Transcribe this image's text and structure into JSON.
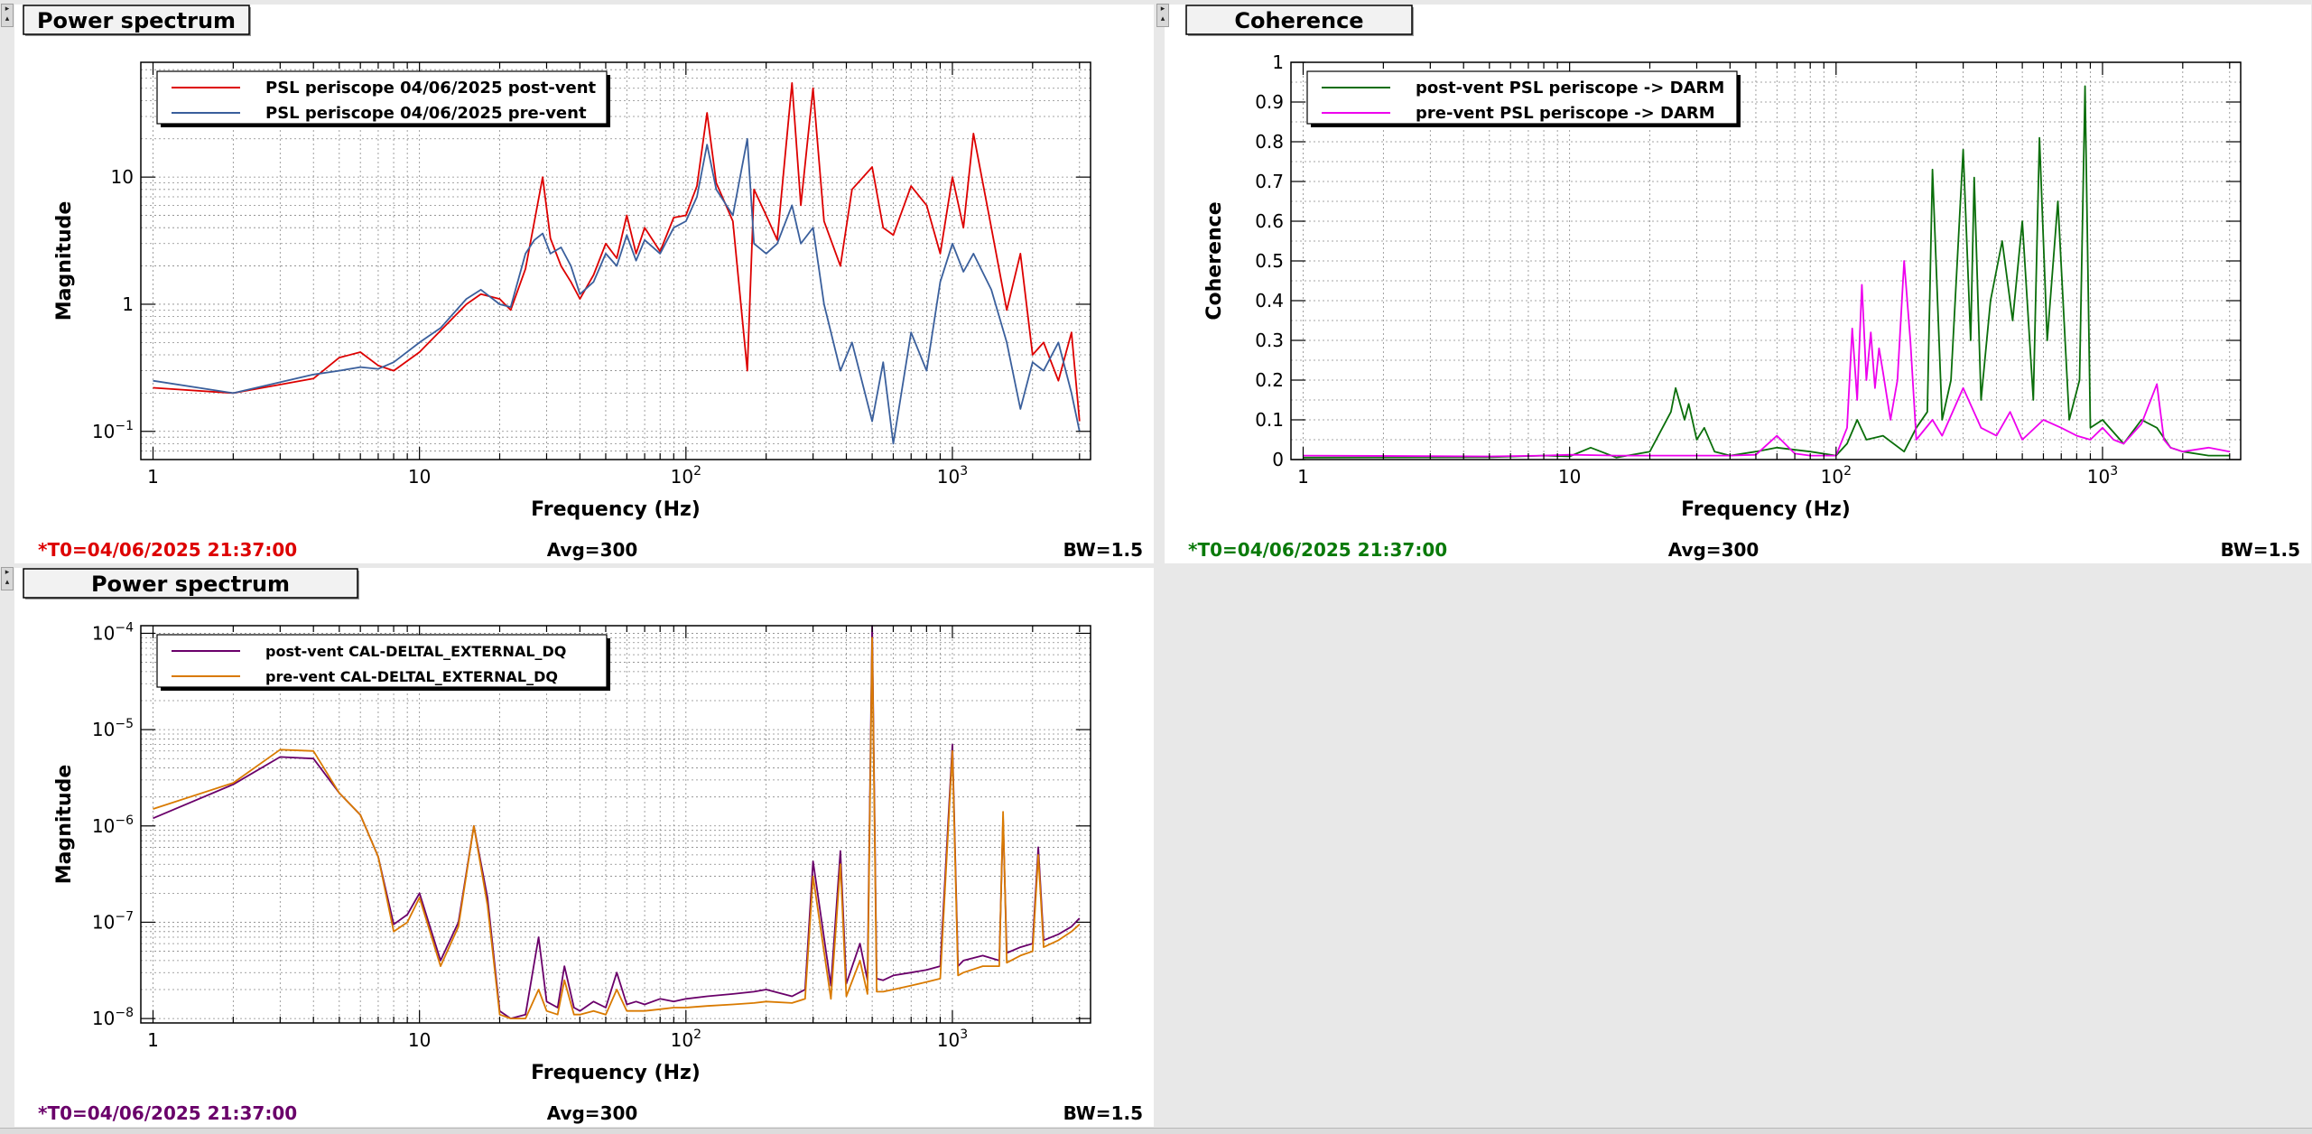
{
  "panels": [
    {
      "id": "tl",
      "title": "Power spectrum",
      "ylabel": "Magnitude",
      "xlabel": "Frequency (Hz)",
      "yscale": "log",
      "xlim": [
        0.9,
        3300
      ],
      "ylim": [
        0.06,
        80
      ],
      "xticks": [
        {
          "v": 1,
          "t": "1"
        },
        {
          "v": 10,
          "t": "10"
        },
        {
          "v": 100,
          "t": "10",
          "sup": "2"
        },
        {
          "v": 1000,
          "t": "10",
          "sup": "3"
        }
      ],
      "yticks": [
        {
          "v": 0.1,
          "t": "10",
          "sup": "−1"
        },
        {
          "v": 1,
          "t": "1"
        },
        {
          "v": 10,
          "t": "10"
        }
      ],
      "legend": [
        {
          "label": "PSL periscope 04/06/2025 post-vent",
          "color": "#dd0000"
        },
        {
          "label": "PSL periscope 04/06/2025 pre-vent",
          "color": "#3a5f9c"
        }
      ],
      "footer": {
        "t0": "*T0=04/06/2025 21:37:00",
        "t0_color": "#dd0000",
        "avg": "Avg=300",
        "bw": "BW=1.5"
      }
    },
    {
      "id": "tr",
      "title": "Coherence",
      "ylabel": "Coherence",
      "xlabel": "Frequency (Hz)",
      "yscale": "linear",
      "xlim": [
        0.9,
        3300
      ],
      "ylim": [
        0,
        1
      ],
      "xticks": [
        {
          "v": 1,
          "t": "1"
        },
        {
          "v": 10,
          "t": "10"
        },
        {
          "v": 100,
          "t": "10",
          "sup": "2"
        },
        {
          "v": 1000,
          "t": "10",
          "sup": "3"
        }
      ],
      "yticks": [
        {
          "v": 0,
          "t": "0"
        },
        {
          "v": 0.1,
          "t": "0.1"
        },
        {
          "v": 0.2,
          "t": "0.2"
        },
        {
          "v": 0.3,
          "t": "0.3"
        },
        {
          "v": 0.4,
          "t": "0.4"
        },
        {
          "v": 0.5,
          "t": "0.5"
        },
        {
          "v": 0.6,
          "t": "0.6"
        },
        {
          "v": 0.7,
          "t": "0.7"
        },
        {
          "v": 0.8,
          "t": "0.8"
        },
        {
          "v": 0.9,
          "t": "0.9"
        },
        {
          "v": 1,
          "t": "1"
        }
      ],
      "legend": [
        {
          "label": "post-vent PSL periscope -> DARM",
          "color": "#0a6e0a"
        },
        {
          "label": "pre-vent PSL periscope -> DARM",
          "color": "#ee00ee"
        }
      ],
      "footer": {
        "t0": "*T0=04/06/2025 21:37:00",
        "t0_color": "#0a7a0a",
        "avg": "Avg=300",
        "bw": "BW=1.5"
      }
    },
    {
      "id": "bl",
      "title": "Power spectrum",
      "ylabel": "Magnitude",
      "xlabel": "Frequency (Hz)",
      "yscale": "log",
      "xlim": [
        0.9,
        3300
      ],
      "ylim": [
        9e-09,
        0.00012
      ],
      "xticks": [
        {
          "v": 1,
          "t": "1"
        },
        {
          "v": 10,
          "t": "10"
        },
        {
          "v": 100,
          "t": "10",
          "sup": "2"
        },
        {
          "v": 1000,
          "t": "10",
          "sup": "3"
        }
      ],
      "yticks": [
        {
          "v": 1e-08,
          "t": "10",
          "sup": "−8"
        },
        {
          "v": 1e-07,
          "t": "10",
          "sup": "−7"
        },
        {
          "v": 1e-06,
          "t": "10",
          "sup": "−6"
        },
        {
          "v": 1e-05,
          "t": "10",
          "sup": "−5"
        },
        {
          "v": 0.0001,
          "t": "10",
          "sup": "−4"
        }
      ],
      "legend": [
        {
          "label": "post-vent CAL-DELTAL_EXTERNAL_DQ",
          "color": "#6a006a"
        },
        {
          "label": "pre-vent CAL-DELTAL_EXTERNAL_DQ",
          "color": "#d97a00"
        }
      ],
      "footer": {
        "t0": "*T0=04/06/2025 21:37:00",
        "t0_color": "#6a006a",
        "avg": "Avg=300",
        "bw": "BW=1.5"
      }
    }
  ],
  "chart_data": [
    {
      "type": "line",
      "title": "Power spectrum",
      "xlabel": "Frequency (Hz)",
      "ylabel": "Magnitude",
      "xscale": "log",
      "yscale": "log",
      "xlim": [
        0.9,
        3300
      ],
      "ylim": [
        0.06,
        80
      ],
      "grid": true,
      "legend": "top-left",
      "series": [
        {
          "name": "PSL periscope 04/06/2025 post-vent",
          "color": "#dd0000",
          "x": [
            1,
            2,
            4,
            5,
            6,
            7,
            8,
            10,
            12,
            15,
            17,
            20,
            22,
            25,
            27,
            29,
            31,
            34,
            37,
            40,
            45,
            50,
            55,
            60,
            65,
            70,
            80,
            90,
            100,
            110,
            120,
            130,
            150,
            170,
            180,
            200,
            220,
            250,
            270,
            300,
            330,
            380,
            420,
            500,
            550,
            600,
            700,
            800,
            900,
            1000,
            1100,
            1200,
            1400,
            1600,
            1800,
            2000,
            2200,
            2500,
            2800,
            3000
          ],
          "y": [
            0.22,
            0.2,
            0.26,
            0.38,
            0.42,
            0.33,
            0.3,
            0.42,
            0.62,
            1.0,
            1.2,
            1.1,
            0.9,
            1.9,
            4.5,
            10.0,
            3.3,
            2.0,
            1.5,
            1.1,
            1.7,
            3.0,
            2.3,
            5.0,
            2.5,
            4.0,
            2.6,
            4.8,
            5.0,
            8.5,
            32.0,
            9.0,
            4.5,
            0.3,
            8.0,
            5.0,
            3.2,
            55.0,
            6.0,
            50.0,
            4.5,
            2.0,
            8.0,
            12.0,
            4.0,
            3.5,
            8.5,
            6.0,
            2.5,
            10.0,
            4.0,
            22.0,
            4.0,
            0.9,
            2.5,
            0.4,
            0.5,
            0.25,
            0.6,
            0.12
          ]
        },
        {
          "name": "PSL periscope 04/06/2025 pre-vent",
          "color": "#3a5f9c",
          "x": [
            1,
            2,
            4,
            5,
            6,
            7,
            8,
            10,
            12,
            15,
            17,
            20,
            22,
            25,
            27,
            29,
            31,
            34,
            37,
            40,
            45,
            50,
            55,
            60,
            65,
            70,
            80,
            90,
            100,
            110,
            120,
            130,
            150,
            170,
            180,
            200,
            220,
            250,
            270,
            300,
            330,
            380,
            420,
            500,
            550,
            600,
            700,
            800,
            900,
            1000,
            1100,
            1200,
            1400,
            1600,
            1800,
            2000,
            2200,
            2500,
            2800,
            3000
          ],
          "y": [
            0.25,
            0.2,
            0.28,
            0.3,
            0.32,
            0.31,
            0.35,
            0.5,
            0.65,
            1.1,
            1.3,
            1.0,
            0.95,
            2.5,
            3.2,
            3.6,
            2.5,
            2.8,
            2.0,
            1.2,
            1.5,
            2.5,
            2.0,
            3.5,
            2.2,
            3.2,
            2.5,
            4.0,
            4.5,
            7.0,
            18.0,
            8.0,
            5.0,
            20.0,
            3.0,
            2.5,
            3.0,
            6.0,
            3.0,
            4.0,
            1.0,
            0.3,
            0.5,
            0.12,
            0.35,
            0.08,
            0.6,
            0.3,
            1.5,
            3.0,
            1.8,
            2.5,
            1.3,
            0.5,
            0.15,
            0.35,
            0.3,
            0.5,
            0.2,
            0.1
          ]
        }
      ]
    },
    {
      "type": "line",
      "title": "Coherence",
      "xlabel": "Frequency (Hz)",
      "ylabel": "Coherence",
      "xscale": "log",
      "yscale": "linear",
      "xlim": [
        0.9,
        3300
      ],
      "ylim": [
        0,
        1
      ],
      "grid": true,
      "legend": "top-left",
      "series": [
        {
          "name": "post-vent PSL periscope -> DARM",
          "color": "#0a6e0a",
          "x": [
            1,
            5,
            8,
            10,
            12,
            15,
            20,
            24,
            25,
            27,
            28,
            30,
            32,
            35,
            40,
            50,
            60,
            80,
            100,
            110,
            120,
            130,
            150,
            180,
            200,
            220,
            230,
            250,
            270,
            300,
            320,
            330,
            350,
            380,
            420,
            460,
            500,
            550,
            580,
            620,
            680,
            750,
            820,
            860,
            900,
            1000,
            1200,
            1400,
            1600,
            1800,
            2000,
            2500,
            3000
          ],
          "y": [
            0.005,
            0.006,
            0.01,
            0.008,
            0.03,
            0.005,
            0.02,
            0.12,
            0.18,
            0.1,
            0.14,
            0.05,
            0.08,
            0.02,
            0.01,
            0.02,
            0.03,
            0.02,
            0.01,
            0.04,
            0.1,
            0.05,
            0.06,
            0.02,
            0.08,
            0.12,
            0.73,
            0.1,
            0.2,
            0.78,
            0.3,
            0.71,
            0.15,
            0.4,
            0.55,
            0.35,
            0.6,
            0.15,
            0.81,
            0.3,
            0.65,
            0.1,
            0.2,
            0.94,
            0.08,
            0.1,
            0.04,
            0.1,
            0.08,
            0.03,
            0.02,
            0.01,
            0.01
          ]
        },
        {
          "name": "pre-vent PSL periscope -> DARM",
          "color": "#ee00ee",
          "x": [
            1,
            5,
            8,
            10,
            15,
            20,
            30,
            40,
            50,
            60,
            70,
            80,
            100,
            110,
            115,
            120,
            125,
            130,
            135,
            140,
            145,
            150,
            160,
            170,
            180,
            190,
            200,
            230,
            250,
            300,
            350,
            400,
            450,
            500,
            600,
            700,
            800,
            900,
            1000,
            1100,
            1200,
            1400,
            1600,
            1700,
            1800,
            2000,
            2500,
            3000
          ],
          "y": [
            0.01,
            0.008,
            0.01,
            0.012,
            0.01,
            0.01,
            0.01,
            0.01,
            0.012,
            0.06,
            0.015,
            0.01,
            0.01,
            0.08,
            0.33,
            0.15,
            0.44,
            0.2,
            0.32,
            0.18,
            0.28,
            0.22,
            0.1,
            0.2,
            0.5,
            0.3,
            0.05,
            0.1,
            0.06,
            0.18,
            0.08,
            0.06,
            0.12,
            0.05,
            0.1,
            0.08,
            0.06,
            0.05,
            0.08,
            0.05,
            0.04,
            0.09,
            0.19,
            0.05,
            0.03,
            0.02,
            0.03,
            0.02
          ]
        }
      ]
    },
    {
      "type": "line",
      "title": "Power spectrum",
      "xlabel": "Frequency (Hz)",
      "ylabel": "Magnitude",
      "xscale": "log",
      "yscale": "log",
      "xlim": [
        0.9,
        3300
      ],
      "ylim": [
        9e-09,
        0.00012
      ],
      "grid": true,
      "legend": "top-left",
      "series": [
        {
          "name": "post-vent CAL-DELTAL_EXTERNAL_DQ",
          "color": "#6a006a",
          "x": [
            1,
            2,
            3,
            4,
            5,
            6,
            7,
            8,
            9,
            10,
            12,
            14,
            16,
            18,
            20,
            22,
            25,
            28,
            30,
            33,
            35,
            38,
            40,
            45,
            50,
            55,
            60,
            65,
            70,
            80,
            90,
            100,
            120,
            150,
            180,
            200,
            250,
            280,
            300,
            350,
            380,
            400,
            450,
            480,
            500,
            520,
            550,
            600,
            700,
            800,
            900,
            1000,
            1050,
            1100,
            1300,
            1500,
            1550,
            1600,
            1800,
            2000,
            2100,
            2200,
            2500,
            2800,
            3000
          ],
          "y": [
            1.2e-06,
            2.7e-06,
            5.2e-06,
            5e-06,
            2.2e-06,
            1.3e-06,
            4.8e-07,
            9.5e-08,
            1.2e-07,
            2e-07,
            4e-08,
            1e-07,
            1e-06,
            1.8e-07,
            1.2e-08,
            1e-08,
            1.1e-08,
            7e-08,
            1.5e-08,
            1.3e-08,
            3.5e-08,
            1.3e-08,
            1.2e-08,
            1.5e-08,
            1.3e-08,
            3e-08,
            1.4e-08,
            1.5e-08,
            1.4e-08,
            1.6e-08,
            1.5e-08,
            1.6e-08,
            1.7e-08,
            1.8e-08,
            1.9e-08,
            2e-08,
            1.7e-08,
            2e-08,
            4.3e-07,
            2.2e-08,
            5.5e-07,
            2.3e-08,
            6e-08,
            2.5e-08,
            0.00012,
            2.6e-08,
            2.5e-08,
            2.8e-08,
            3e-08,
            3.2e-08,
            3.5e-08,
            7e-06,
            3.5e-08,
            4e-08,
            4.5e-08,
            4e-08,
            1.2e-06,
            4.8e-08,
            5.5e-08,
            6e-08,
            6e-07,
            6.5e-08,
            7.5e-08,
            9e-08,
            1.1e-07
          ]
        },
        {
          "name": "pre-vent CAL-DELTAL_EXTERNAL_DQ",
          "color": "#d97a00",
          "x": [
            1,
            2,
            3,
            4,
            5,
            6,
            7,
            8,
            9,
            10,
            12,
            14,
            16,
            18,
            20,
            22,
            25,
            28,
            30,
            33,
            35,
            38,
            40,
            45,
            50,
            55,
            60,
            65,
            70,
            80,
            90,
            100,
            120,
            150,
            180,
            200,
            250,
            280,
            300,
            350,
            380,
            400,
            450,
            480,
            500,
            520,
            550,
            600,
            700,
            800,
            900,
            1000,
            1050,
            1100,
            1300,
            1500,
            1550,
            1600,
            1800,
            2000,
            2100,
            2200,
            2500,
            2800,
            3000
          ],
          "y": [
            1.5e-06,
            2.8e-06,
            6.2e-06,
            6e-06,
            2.2e-06,
            1.3e-06,
            4.8e-07,
            8e-08,
            1e-07,
            1.8e-07,
            3.5e-08,
            9e-08,
            1e-06,
            1.5e-07,
            1.1e-08,
            1e-08,
            1e-08,
            2e-08,
            1.2e-08,
            1.1e-08,
            2.5e-08,
            1.1e-08,
            1.1e-08,
            1.2e-08,
            1.1e-08,
            2e-08,
            1.2e-08,
            1.2e-08,
            1.2e-08,
            1.25e-08,
            1.3e-08,
            1.3e-08,
            1.35e-08,
            1.4e-08,
            1.45e-08,
            1.5e-08,
            1.45e-08,
            1.6e-08,
            3e-07,
            1.6e-08,
            4e-07,
            1.7e-08,
            4e-08,
            1.8e-08,
            9e-05,
            1.9e-08,
            1.9e-08,
            2e-08,
            2.2e-08,
            2.4e-08,
            2.6e-08,
            6e-06,
            2.8e-08,
            3e-08,
            3.5e-08,
            3.5e-08,
            1.4e-06,
            3.8e-08,
            4.5e-08,
            5e-08,
            5e-07,
            5.5e-08,
            6.5e-08,
            8e-08,
            9.5e-08
          ]
        }
      ]
    }
  ]
}
